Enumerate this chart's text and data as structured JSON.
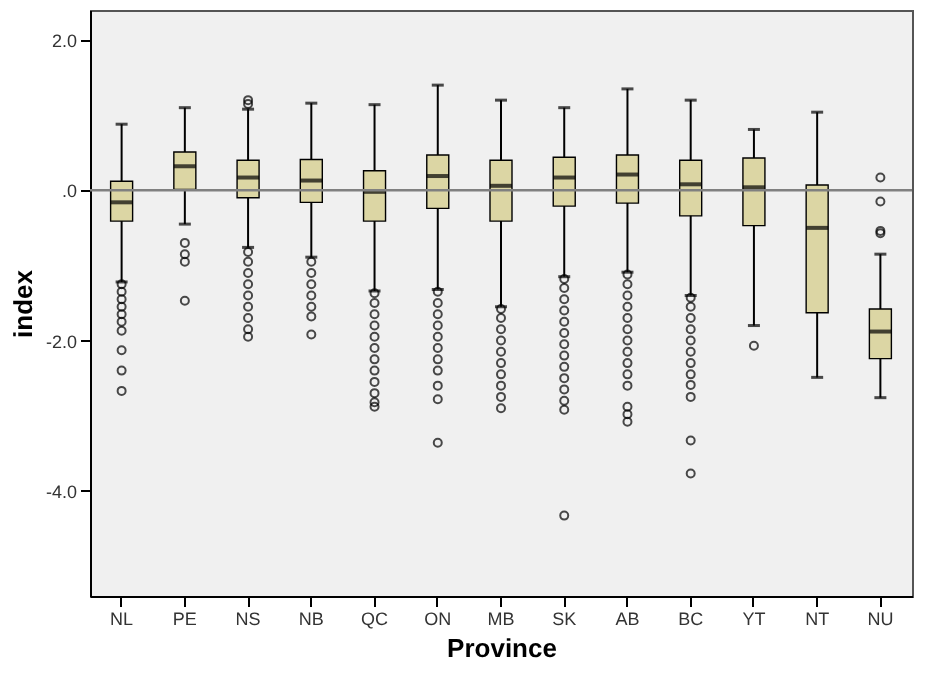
{
  "chart_data": {
    "type": "box",
    "xlabel": "Province",
    "ylabel": "index",
    "categories": [
      "NL",
      "PE",
      "NS",
      "NB",
      "QC",
      "ON",
      "MB",
      "SK",
      "AB",
      "BC",
      "YT",
      "NT",
      "NU"
    ],
    "color": "#dcd6a4",
    "marker": "circle",
    "grid": false,
    "ylim": [
      -5.4,
      2.4
    ],
    "yticks": [
      {
        "value": 2,
        "label": "2.0"
      },
      {
        "value": 0,
        "label": ".0"
      },
      {
        "value": -2,
        "label": "-2.0"
      },
      {
        "value": -4,
        "label": "-4.0"
      }
    ],
    "ref_lines": [
      {
        "axis": "y",
        "value": 0,
        "color": "#808080"
      }
    ],
    "boxes": [
      {
        "low": -1.22,
        "q1": -0.41,
        "median": -0.16,
        "q3": 0.12,
        "high": 0.88,
        "outliers": [
          -1.25,
          -1.35,
          -1.45,
          -1.55,
          -1.65,
          -1.75,
          -1.87,
          -2.13,
          -2.4,
          -2.67
        ]
      },
      {
        "low": -0.45,
        "q1": 0.01,
        "median": 0.32,
        "q3": 0.51,
        "high": 1.1,
        "outliers": [
          -0.7,
          -0.85,
          -0.95,
          -1.47
        ]
      },
      {
        "low": -0.76,
        "q1": -0.1,
        "median": 0.17,
        "q3": 0.4,
        "high": 1.08,
        "outliers": [
          1.15,
          1.2,
          -0.82,
          -0.95,
          -1.1,
          -1.25,
          -1.4,
          -1.55,
          -1.7,
          -1.85,
          -1.95
        ]
      },
      {
        "low": -0.89,
        "q1": -0.16,
        "median": 0.13,
        "q3": 0.41,
        "high": 1.16,
        "outliers": [
          -0.95,
          -1.1,
          -1.25,
          -1.4,
          -1.55,
          -1.68,
          -1.92
        ]
      },
      {
        "low": -1.34,
        "q1": -0.41,
        "median": -0.02,
        "q3": 0.26,
        "high": 1.14,
        "outliers": [
          -1.37,
          -1.5,
          -1.65,
          -1.8,
          -1.95,
          -2.1,
          -2.25,
          -2.4,
          -2.55,
          -2.7,
          -2.82,
          -2.88
        ]
      },
      {
        "low": -1.32,
        "q1": -0.24,
        "median": 0.19,
        "q3": 0.47,
        "high": 1.4,
        "outliers": [
          -1.35,
          -1.5,
          -1.65,
          -1.8,
          -1.95,
          -2.1,
          -2.25,
          -2.4,
          -2.6,
          -2.78,
          -3.36
        ]
      },
      {
        "low": -1.55,
        "q1": -0.41,
        "median": 0.06,
        "q3": 0.4,
        "high": 1.2,
        "outliers": [
          -1.58,
          -1.7,
          -1.85,
          -2.0,
          -2.15,
          -2.3,
          -2.45,
          -2.6,
          -2.75,
          -2.9
        ]
      },
      {
        "low": -1.15,
        "q1": -0.21,
        "median": 0.17,
        "q3": 0.44,
        "high": 1.1,
        "outliers": [
          -1.18,
          -1.3,
          -1.45,
          -1.6,
          -1.75,
          -1.9,
          -2.05,
          -2.2,
          -2.35,
          -2.5,
          -2.65,
          -2.8,
          -2.92,
          -4.33
        ]
      },
      {
        "low": -1.09,
        "q1": -0.17,
        "median": 0.21,
        "q3": 0.47,
        "high": 1.35,
        "outliers": [
          -1.12,
          -1.25,
          -1.4,
          -1.55,
          -1.7,
          -1.85,
          -2.0,
          -2.15,
          -2.3,
          -2.45,
          -2.6,
          -2.88,
          -2.98,
          -3.08
        ]
      },
      {
        "low": -1.4,
        "q1": -0.34,
        "median": 0.08,
        "q3": 0.4,
        "high": 1.2,
        "outliers": [
          -1.43,
          -1.55,
          -1.7,
          -1.85,
          -2.0,
          -2.15,
          -2.3,
          -2.45,
          -2.59,
          -2.75,
          -3.33,
          -3.77
        ]
      },
      {
        "low": -1.8,
        "q1": -0.47,
        "median": 0.04,
        "q3": 0.43,
        "high": 0.81,
        "outliers": [
          -2.07
        ]
      },
      {
        "low": -2.49,
        "q1": -1.63,
        "median": -0.5,
        "q3": 0.07,
        "high": 1.04
      },
      {
        "low": -2.76,
        "q1": -2.24,
        "median": -1.88,
        "q3": -1.58,
        "high": -0.85,
        "outliers": [
          0.17,
          -0.15,
          -0.54,
          -0.57
        ]
      }
    ]
  }
}
